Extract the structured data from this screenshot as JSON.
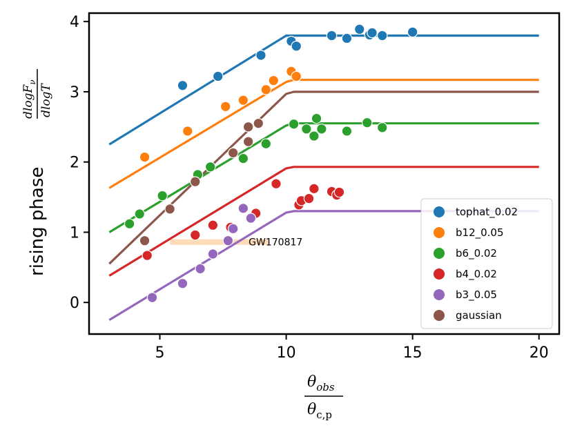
{
  "chart_data": {
    "type": "scatter",
    "xlabel_numerator": "θ",
    "xlabel_numerator_sub": "obs",
    "xlabel_denominator": "θ",
    "xlabel_denominator_sub": "c,p",
    "ylabel": "rising phase",
    "ylabel_fraction_numerator": "dlogF",
    "ylabel_fraction_numerator_sub": "ν",
    "ylabel_fraction_denominator": "dlogT",
    "xlim": [
      2.2,
      20.8
    ],
    "ylim": [
      -0.45,
      4.12
    ],
    "xticks": [
      5,
      10,
      15,
      20
    ],
    "xtick_labels": [
      "5",
      "10",
      "15",
      "20"
    ],
    "yticks": [
      0,
      1,
      2,
      3,
      4
    ],
    "ytick_labels": [
      "0",
      "1",
      "2",
      "3",
      "4"
    ],
    "series": [
      {
        "name": "tophat_0.02",
        "color": "#1f77b4",
        "line": [
          [
            3,
            2.25
          ],
          [
            10,
            3.8
          ],
          [
            10.3,
            3.8
          ],
          [
            20,
            3.8
          ]
        ],
        "points": [
          [
            5.9,
            3.09
          ],
          [
            7.3,
            3.22
          ],
          [
            9.0,
            3.52
          ],
          [
            10.2,
            3.72
          ],
          [
            10.4,
            3.65
          ],
          [
            11.8,
            3.8
          ],
          [
            12.4,
            3.76
          ],
          [
            12.9,
            3.89
          ],
          [
            13.3,
            3.81
          ],
          [
            13.4,
            3.84
          ],
          [
            13.8,
            3.8
          ],
          [
            15.0,
            3.85
          ]
        ]
      },
      {
        "name": "b12_0.05",
        "color": "#ff7f0e",
        "line": [
          [
            3,
            1.63
          ],
          [
            10,
            3.14
          ],
          [
            10.3,
            3.17
          ],
          [
            20,
            3.17
          ]
        ],
        "points": [
          [
            4.4,
            2.07
          ],
          [
            6.1,
            2.44
          ],
          [
            7.6,
            2.79
          ],
          [
            8.3,
            2.88
          ],
          [
            9.2,
            3.03
          ],
          [
            9.5,
            3.16
          ],
          [
            10.2,
            3.29
          ],
          [
            10.4,
            3.22
          ]
        ]
      },
      {
        "name": "b6_0.02",
        "color": "#2ca02c",
        "line": [
          [
            3,
            1.0
          ],
          [
            10,
            2.52
          ],
          [
            10.3,
            2.55
          ],
          [
            20,
            2.55
          ]
        ],
        "points": [
          [
            3.8,
            1.12
          ],
          [
            4.2,
            1.26
          ],
          [
            5.1,
            1.52
          ],
          [
            6.5,
            1.82
          ],
          [
            7.0,
            1.93
          ],
          [
            8.3,
            2.05
          ],
          [
            9.2,
            2.26
          ],
          [
            10.3,
            2.54
          ],
          [
            10.8,
            2.47
          ],
          [
            11.1,
            2.37
          ],
          [
            11.2,
            2.62
          ],
          [
            11.4,
            2.47
          ],
          [
            12.4,
            2.44
          ],
          [
            13.2,
            2.56
          ],
          [
            13.8,
            2.49
          ]
        ]
      },
      {
        "name": "b4_0.02",
        "color": "#d62728",
        "line": [
          [
            3,
            0.38
          ],
          [
            10,
            1.91
          ],
          [
            10.3,
            1.93
          ],
          [
            20,
            1.93
          ]
        ],
        "points": [
          [
            4.5,
            0.67
          ],
          [
            6.4,
            0.96
          ],
          [
            7.1,
            1.1
          ],
          [
            7.8,
            1.07
          ],
          [
            8.8,
            1.27
          ],
          [
            9.6,
            1.69
          ],
          [
            10.5,
            1.39
          ],
          [
            10.6,
            1.45
          ],
          [
            10.9,
            1.48
          ],
          [
            11.1,
            1.62
          ],
          [
            11.8,
            1.58
          ],
          [
            12.0,
            1.53
          ],
          [
            12.1,
            1.57
          ]
        ]
      },
      {
        "name": "b3_0.05",
        "color": "#9467bd",
        "line": [
          [
            3,
            -0.25
          ],
          [
            10,
            1.28
          ],
          [
            10.3,
            1.3
          ],
          [
            20,
            1.3
          ]
        ],
        "points": [
          [
            4.7,
            0.07
          ],
          [
            5.9,
            0.27
          ],
          [
            6.6,
            0.48
          ],
          [
            7.1,
            0.69
          ],
          [
            7.7,
            0.88
          ],
          [
            7.9,
            1.05
          ],
          [
            8.3,
            1.34
          ],
          [
            8.6,
            1.2
          ]
        ]
      },
      {
        "name": "gaussian",
        "color": "#8c564b",
        "line": [
          [
            3,
            0.55
          ],
          [
            10,
            2.97
          ],
          [
            10.3,
            3.0
          ],
          [
            20,
            3.0
          ]
        ],
        "points": [
          [
            4.4,
            0.88
          ],
          [
            5.4,
            1.33
          ],
          [
            6.4,
            1.72
          ],
          [
            7.9,
            2.13
          ],
          [
            8.5,
            2.29
          ],
          [
            8.5,
            2.5
          ],
          [
            8.9,
            2.55
          ]
        ]
      }
    ],
    "annotation": {
      "label": "GW170817",
      "x_start": 5.4,
      "x_end": 9.3,
      "y": 0.86,
      "color": "#ffdcb8"
    },
    "legend": {
      "position": "lower-right",
      "entries": [
        "tophat_0.02",
        "b12_0.05",
        "b6_0.02",
        "b4_0.02",
        "b3_0.05",
        "gaussian"
      ]
    }
  }
}
